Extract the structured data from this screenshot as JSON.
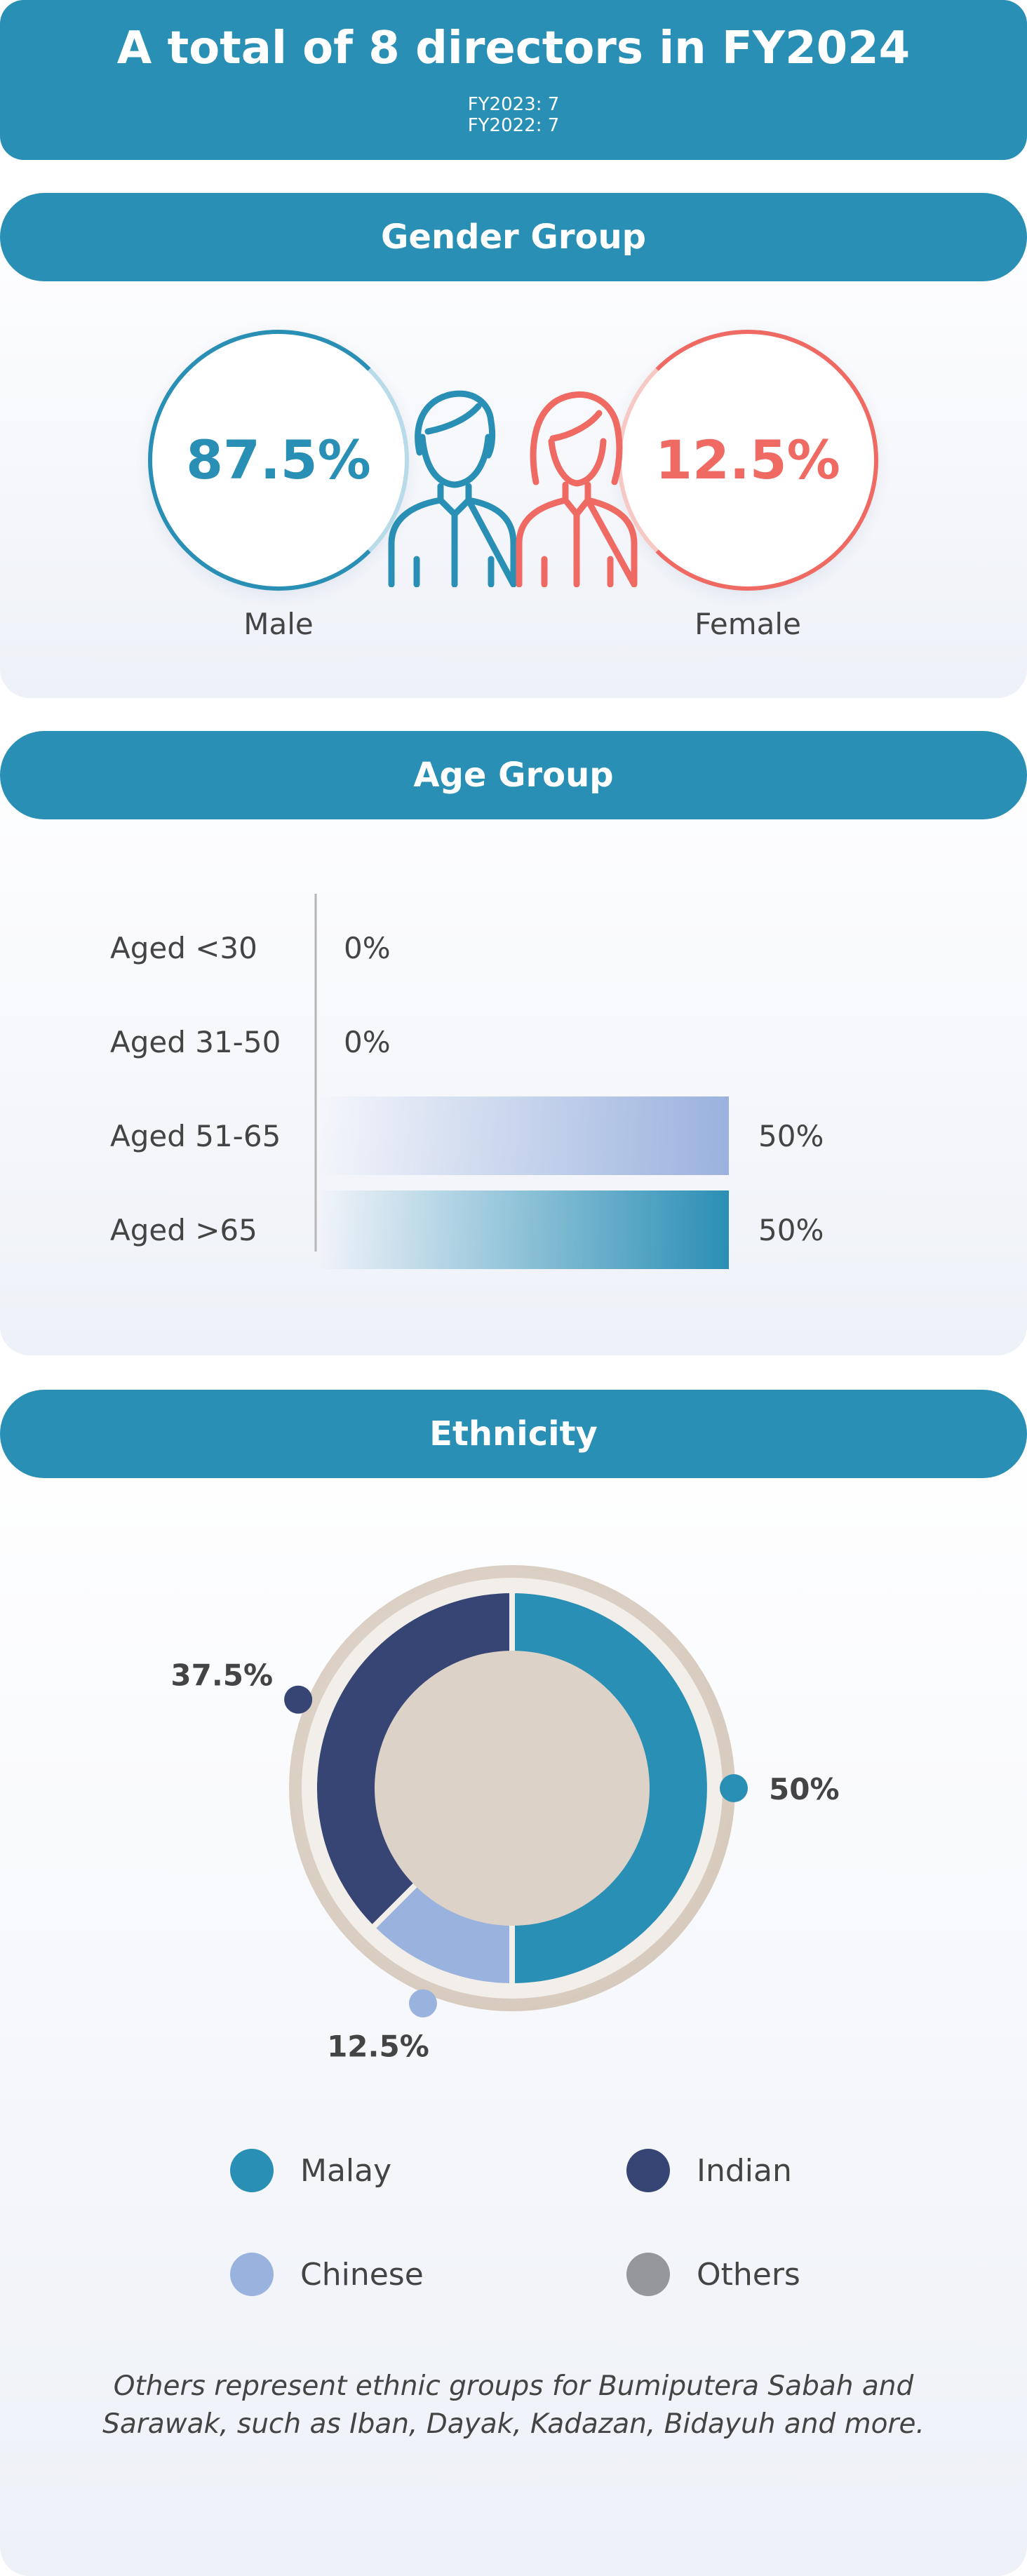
{
  "header": {
    "title": "A total of 8 directors in FY2024",
    "sub1": "FY2023: 7",
    "sub2": "FY2022: 7"
  },
  "gender": {
    "title": "Gender Group",
    "male": {
      "pct": "87.5%",
      "label": "Male",
      "color": "#2a8fb5"
    },
    "female": {
      "pct": "12.5%",
      "label": "Female",
      "color": "#ee6a62"
    }
  },
  "age": {
    "title": "Age Group"
  },
  "ethnicity": {
    "title": "Ethnicity",
    "legend": [
      {
        "label": "Malay",
        "color": "#2a8fb5"
      },
      {
        "label": "Indian",
        "color": "#374574"
      },
      {
        "label": "Chinese",
        "color": "#9ab2de"
      },
      {
        "label": "Others",
        "color": "#96979b"
      }
    ],
    "note": "Others represent ethnic groups for Bumiputera Sabah and Sarawak, such as Iban, Dayak, Kadazan, Bidayuh and more."
  },
  "chart_data": [
    {
      "type": "bar",
      "orientation": "horizontal",
      "title": "Age Group",
      "categories": [
        "Aged <30",
        "Aged 31-50",
        "Aged 51-65",
        "Aged >65"
      ],
      "values": [
        0,
        0,
        50,
        50
      ],
      "value_labels": [
        "0%",
        "0%",
        "50%",
        "50%"
      ],
      "colors": [
        "#9ab2de",
        "#9ab2de",
        "#9ab2de",
        "#2a8fb5"
      ],
      "xlim": [
        0,
        100
      ]
    },
    {
      "type": "pie",
      "title": "Ethnicity",
      "categories": [
        "Malay",
        "Chinese",
        "Indian",
        "Others"
      ],
      "values": [
        50,
        12.5,
        37.5,
        0
      ],
      "value_labels": [
        "50%",
        "12.5%",
        "37.5%",
        ""
      ],
      "colors": [
        "#2a8fb5",
        "#9ab2de",
        "#374574",
        "#96979b"
      ]
    }
  ]
}
